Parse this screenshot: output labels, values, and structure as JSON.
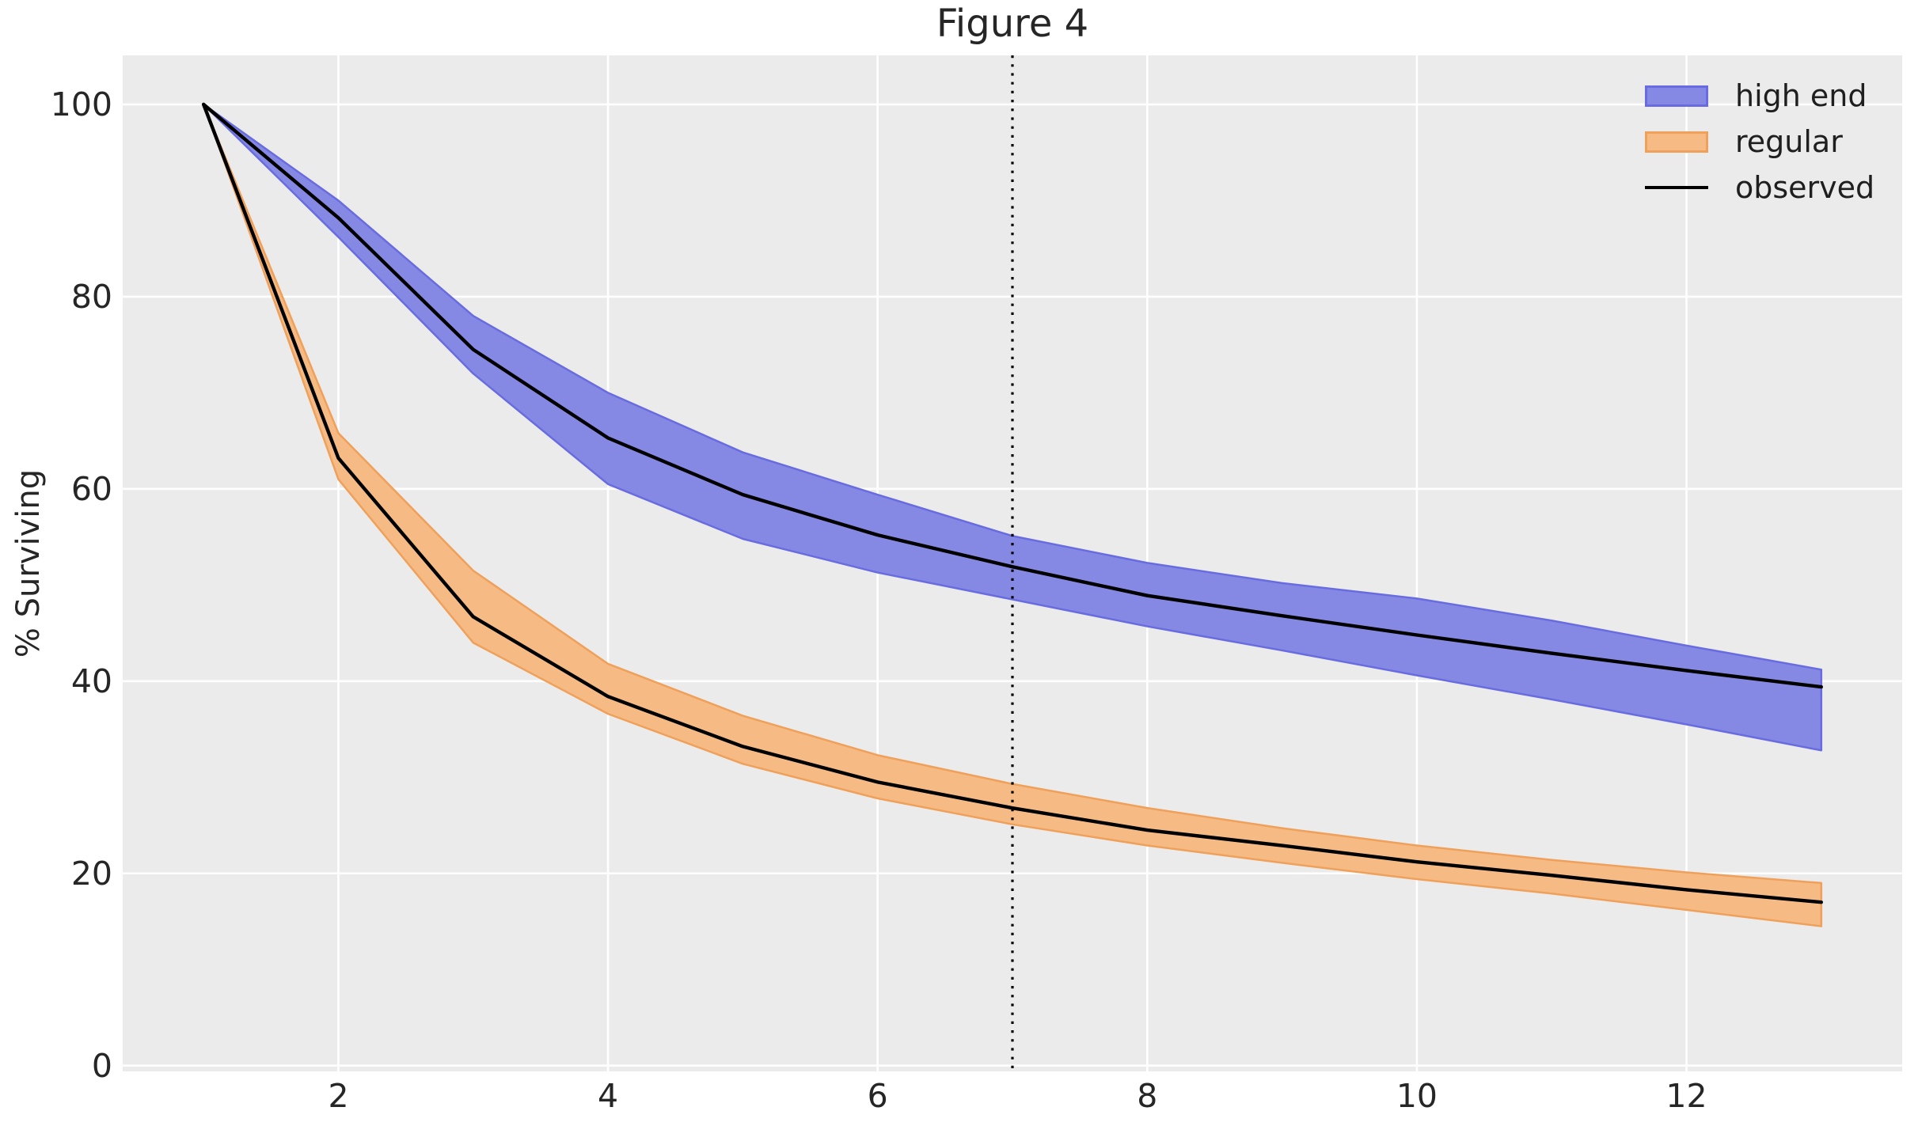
{
  "chart_data": {
    "type": "area",
    "title": "Figure 4",
    "xlabel": "",
    "ylabel": "% Surviving",
    "background": {
      "figure": "#ffffff",
      "axes": "#ebebeb",
      "grid": "#ffffff"
    },
    "xlim": [
      0.4,
      13.6
    ],
    "ylim": [
      -0.6,
      105.1
    ],
    "xticks": [
      2,
      4,
      6,
      8,
      10,
      12
    ],
    "yticks": [
      0,
      20,
      40,
      60,
      80,
      100
    ],
    "grid": true,
    "x": [
      1,
      2,
      3,
      4,
      5,
      6,
      7,
      8,
      9,
      10,
      11,
      12,
      13
    ],
    "series": [
      {
        "name": "high end",
        "kind": "band",
        "fill": "#8689e4",
        "edge": "#686ce0",
        "upper": [
          100,
          90.0,
          78.0,
          70.0,
          63.8,
          59.4,
          55.1,
          52.3,
          50.2,
          48.6,
          46.3,
          43.7,
          41.2
        ],
        "lower": [
          100,
          86.2,
          72.0,
          60.5,
          54.8,
          51.3,
          48.5,
          45.7,
          43.2,
          40.6,
          38.1,
          35.5,
          32.8
        ]
      },
      {
        "name": "regular",
        "kind": "band",
        "fill": "#f6bb84",
        "edge": "#efa05a",
        "upper": [
          100,
          65.8,
          51.5,
          41.8,
          36.4,
          32.3,
          29.3,
          26.8,
          24.7,
          22.9,
          21.4,
          20.1,
          19.0
        ],
        "lower": [
          100,
          61.0,
          44.0,
          36.6,
          31.4,
          27.8,
          25.1,
          22.9,
          21.1,
          19.4,
          17.9,
          16.2,
          14.5
        ]
      },
      {
        "name": "observed",
        "kind": "line",
        "color": "#000000",
        "lines": [
          [
            100,
            88.2,
            74.5,
            65.3,
            59.4,
            55.2,
            51.9,
            48.9,
            46.8,
            44.8,
            42.9,
            41.1,
            39.4
          ],
          [
            100,
            63.2,
            46.7,
            38.4,
            33.2,
            29.5,
            26.8,
            24.5,
            22.9,
            21.2,
            19.8,
            18.3,
            17.0
          ]
        ]
      }
    ],
    "vline": {
      "x": 7,
      "color": "#000000",
      "style": "dotted"
    },
    "legend": {
      "position": "upper right",
      "items": [
        {
          "label": "high end",
          "swatch": "band"
        },
        {
          "label": "regular",
          "swatch": "band"
        },
        {
          "label": "observed",
          "swatch": "line"
        }
      ]
    }
  }
}
